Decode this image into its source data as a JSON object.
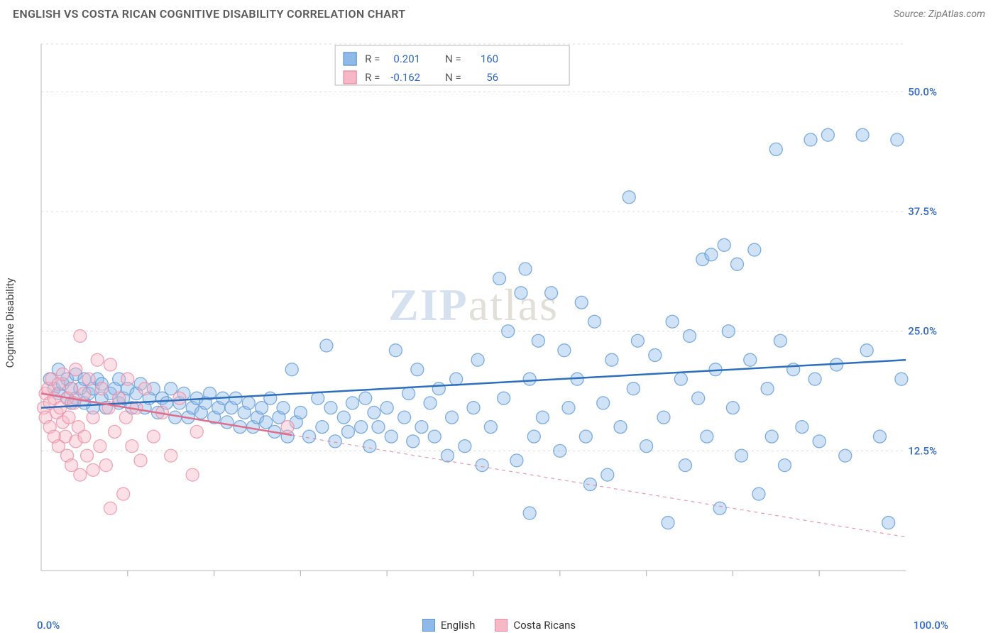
{
  "header": {
    "title": "ENGLISH VS COSTA RICAN COGNITIVE DISABILITY CORRELATION CHART",
    "source_prefix": "Source: ",
    "source": "ZipAtlas.com"
  },
  "chart": {
    "type": "scatter",
    "ylabel": "Cognitive Disability",
    "watermark": "ZIPatlas",
    "background_color": "#ffffff",
    "grid_color": "#dcdcdc",
    "axis_color": "#cfcfcf",
    "tick_color": "#b8b8b8",
    "label_color": "#2f68c5",
    "xlim": [
      0,
      100
    ],
    "ylim": [
      0,
      55
    ],
    "y_ticks": [
      12.5,
      25.0,
      37.5,
      50.0
    ],
    "y_tick_labels": [
      "12.5%",
      "25.0%",
      "37.5%",
      "50.0%"
    ],
    "x_minor_ticks": [
      10,
      20,
      30,
      40,
      50,
      60,
      70,
      80,
      90
    ],
    "x_tick_left": "0.0%",
    "x_tick_right": "100.0%",
    "marker_radius": 9,
    "marker_opacity": 0.42,
    "line_width": 2.5,
    "series": [
      {
        "name": "English",
        "color_fill": "#8fb9e8",
        "color_stroke": "#5a94d6",
        "line_color": "#2d6fbd",
        "r_value": "0.201",
        "n_value": "160",
        "trend": {
          "x1": 0,
          "y1": 17.0,
          "x2": 100,
          "y2": 22.0,
          "dash": false
        },
        "points": [
          [
            1,
            20
          ],
          [
            1.5,
            19
          ],
          [
            2,
            18.5
          ],
          [
            2,
            21
          ],
          [
            2.5,
            19.5
          ],
          [
            3,
            18
          ],
          [
            3,
            20
          ],
          [
            3.5,
            19
          ],
          [
            3.5,
            17.5
          ],
          [
            4,
            20.5
          ],
          [
            4,
            18
          ],
          [
            4.5,
            19
          ],
          [
            5,
            17.5
          ],
          [
            5,
            20
          ],
          [
            5.5,
            18.5
          ],
          [
            6,
            19
          ],
          [
            6,
            17
          ],
          [
            6.5,
            20
          ],
          [
            7,
            18
          ],
          [
            7,
            19.5
          ],
          [
            7.5,
            17
          ],
          [
            8,
            18.5
          ],
          [
            8.5,
            19
          ],
          [
            9,
            17.5
          ],
          [
            9,
            20
          ],
          [
            9.5,
            18
          ],
          [
            10,
            19
          ],
          [
            10.5,
            17
          ],
          [
            11,
            18.5
          ],
          [
            11.5,
            19.5
          ],
          [
            12,
            17
          ],
          [
            12.5,
            18
          ],
          [
            13,
            19
          ],
          [
            13.5,
            16.5
          ],
          [
            14,
            18
          ],
          [
            14.5,
            17.5
          ],
          [
            15,
            19
          ],
          [
            15.5,
            16
          ],
          [
            16,
            17.5
          ],
          [
            16.5,
            18.5
          ],
          [
            17,
            16
          ],
          [
            17.5,
            17
          ],
          [
            18,
            18
          ],
          [
            18.5,
            16.5
          ],
          [
            19,
            17.5
          ],
          [
            19.5,
            18.5
          ],
          [
            20,
            16
          ],
          [
            20.5,
            17
          ],
          [
            21,
            18
          ],
          [
            21.5,
            15.5
          ],
          [
            22,
            17
          ],
          [
            22.5,
            18
          ],
          [
            23,
            15
          ],
          [
            23.5,
            16.5
          ],
          [
            24,
            17.5
          ],
          [
            24.5,
            15
          ],
          [
            25,
            16
          ],
          [
            25.5,
            17
          ],
          [
            26,
            15.5
          ],
          [
            26.5,
            18
          ],
          [
            27,
            14.5
          ],
          [
            27.5,
            16
          ],
          [
            28,
            17
          ],
          [
            28.5,
            14
          ],
          [
            29,
            21
          ],
          [
            29.5,
            15.5
          ],
          [
            30,
            16.5
          ],
          [
            31,
            14
          ],
          [
            32,
            18
          ],
          [
            32.5,
            15
          ],
          [
            33,
            23.5
          ],
          [
            33.5,
            17
          ],
          [
            34,
            13.5
          ],
          [
            35,
            16
          ],
          [
            35.5,
            14.5
          ],
          [
            36,
            17.5
          ],
          [
            37,
            15
          ],
          [
            37.5,
            18
          ],
          [
            38,
            13
          ],
          [
            38.5,
            16.5
          ],
          [
            39,
            15
          ],
          [
            40,
            17
          ],
          [
            40.5,
            14
          ],
          [
            41,
            23
          ],
          [
            42,
            16
          ],
          [
            42.5,
            18.5
          ],
          [
            43,
            13.5
          ],
          [
            43.5,
            21
          ],
          [
            44,
            15
          ],
          [
            45,
            17.5
          ],
          [
            45.5,
            14
          ],
          [
            46,
            19
          ],
          [
            47,
            12
          ],
          [
            47.5,
            16
          ],
          [
            48,
            20
          ],
          [
            49,
            13
          ],
          [
            50,
            17
          ],
          [
            50.5,
            22
          ],
          [
            51,
            11
          ],
          [
            52,
            15
          ],
          [
            53,
            30.5
          ],
          [
            53.5,
            18
          ],
          [
            54,
            25
          ],
          [
            55,
            11.5
          ],
          [
            55.5,
            29
          ],
          [
            56,
            31.5
          ],
          [
            56.5,
            20
          ],
          [
            56.5,
            6
          ],
          [
            57,
            14
          ],
          [
            57.5,
            24
          ],
          [
            58,
            16
          ],
          [
            59,
            29
          ],
          [
            60,
            12.5
          ],
          [
            60.5,
            23
          ],
          [
            61,
            17
          ],
          [
            62,
            20
          ],
          [
            62.5,
            28
          ],
          [
            63,
            14
          ],
          [
            63.5,
            9
          ],
          [
            64,
            26
          ],
          [
            65,
            17.5
          ],
          [
            65.5,
            10
          ],
          [
            66,
            22
          ],
          [
            67,
            15
          ],
          [
            68,
            39
          ],
          [
            68.5,
            19
          ],
          [
            69,
            24
          ],
          [
            70,
            13
          ],
          [
            71,
            22.5
          ],
          [
            72,
            16
          ],
          [
            72.5,
            5
          ],
          [
            73,
            26
          ],
          [
            74,
            20
          ],
          [
            74.5,
            11
          ],
          [
            75,
            24.5
          ],
          [
            76,
            18
          ],
          [
            76.5,
            32.5
          ],
          [
            77,
            14
          ],
          [
            77.5,
            33
          ],
          [
            78,
            21
          ],
          [
            78.5,
            6.5
          ],
          [
            79,
            34
          ],
          [
            79.5,
            25
          ],
          [
            80,
            17
          ],
          [
            80.5,
            32
          ],
          [
            81,
            12
          ],
          [
            82,
            22
          ],
          [
            82.5,
            33.5
          ],
          [
            83,
            8
          ],
          [
            84,
            19
          ],
          [
            84.5,
            14
          ],
          [
            85,
            44
          ],
          [
            85.5,
            24
          ],
          [
            86,
            11
          ],
          [
            87,
            21
          ],
          [
            88,
            15
          ],
          [
            89,
            45
          ],
          [
            89.5,
            20
          ],
          [
            90,
            13.5
          ],
          [
            91,
            45.5
          ],
          [
            92,
            21.5
          ],
          [
            93,
            12
          ],
          [
            95,
            45.5
          ],
          [
            95.5,
            23
          ],
          [
            97,
            14
          ],
          [
            98,
            5
          ],
          [
            99,
            45
          ],
          [
            99.5,
            20
          ]
        ]
      },
      {
        "name": "Costa Ricans",
        "color_fill": "#f6b8c6",
        "color_stroke": "#ec89a2",
        "line_color": "#e16d8b",
        "r_value": "-0.162",
        "n_value": "56",
        "trend": {
          "x1": 0,
          "y1": 18.5,
          "x2": 100,
          "y2": 3.5,
          "dash_from_x": 29
        },
        "points": [
          [
            0.3,
            17
          ],
          [
            0.5,
            18.5
          ],
          [
            0.5,
            16
          ],
          [
            0.8,
            19
          ],
          [
            1,
            15
          ],
          [
            1,
            17.5
          ],
          [
            1.2,
            20
          ],
          [
            1.5,
            14
          ],
          [
            1.5,
            18
          ],
          [
            1.8,
            16.5
          ],
          [
            2,
            19.5
          ],
          [
            2,
            13
          ],
          [
            2.2,
            17
          ],
          [
            2.5,
            15.5
          ],
          [
            2.5,
            20.5
          ],
          [
            2.8,
            14
          ],
          [
            3,
            18
          ],
          [
            3,
            12
          ],
          [
            3.2,
            16
          ],
          [
            3.5,
            19
          ],
          [
            3.5,
            11
          ],
          [
            3.8,
            17.5
          ],
          [
            4,
            13.5
          ],
          [
            4,
            21
          ],
          [
            4.3,
            15
          ],
          [
            4.5,
            24.5
          ],
          [
            4.5,
            10
          ],
          [
            5,
            18.5
          ],
          [
            5,
            14
          ],
          [
            5.3,
            12
          ],
          [
            5.5,
            20
          ],
          [
            6,
            16
          ],
          [
            6,
            10.5
          ],
          [
            6.5,
            22
          ],
          [
            6.8,
            13
          ],
          [
            7,
            19
          ],
          [
            7.5,
            11
          ],
          [
            7.8,
            17
          ],
          [
            8,
            21.5
          ],
          [
            8,
            6.5
          ],
          [
            8.5,
            14.5
          ],
          [
            9,
            18
          ],
          [
            9.5,
            8
          ],
          [
            9.8,
            16
          ],
          [
            10,
            20
          ],
          [
            10.5,
            13
          ],
          [
            11,
            17
          ],
          [
            11.5,
            11.5
          ],
          [
            12,
            19
          ],
          [
            13,
            14
          ],
          [
            14,
            16.5
          ],
          [
            15,
            12
          ],
          [
            16,
            18
          ],
          [
            17.5,
            10
          ],
          [
            18,
            14.5
          ],
          [
            28.5,
            15
          ]
        ]
      }
    ],
    "legend_top": {
      "border_color": "#b8b8b8",
      "bg": "#ffffff",
      "label_color": "#555555",
      "value_color": "#2f68c5"
    },
    "legend_bottom": [
      {
        "label": "English",
        "fill": "#8fb9e8",
        "stroke": "#5a94d6"
      },
      {
        "label": "Costa Ricans",
        "fill": "#f6b8c6",
        "stroke": "#ec89a2"
      }
    ]
  }
}
